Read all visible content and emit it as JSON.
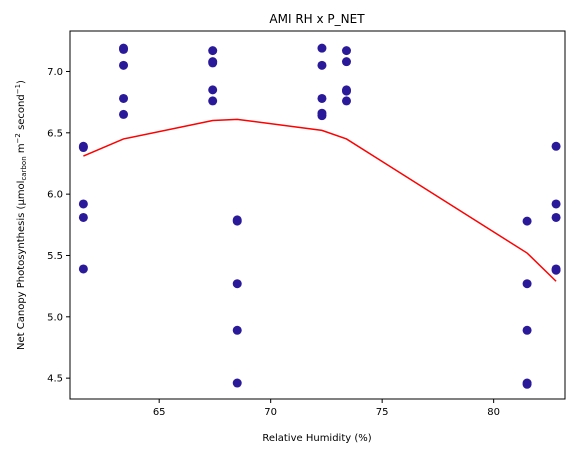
{
  "chart_data": {
    "type": "scatter",
    "title": "AMI RH x P_NET",
    "xlabel": "Relative Humidity (%)",
    "ylabel_parts": {
      "main": "Net Canopy Photosynthesis (µmol",
      "sub": "carbon",
      "mid": " m",
      "sup1": "−2",
      "mid2": " second",
      "sup2": "−1",
      "end": ")"
    },
    "xlim": [
      61.0,
      83.2
    ],
    "ylim": [
      4.33,
      7.33
    ],
    "xticks": [
      65,
      70,
      75,
      80
    ],
    "yticks": [
      4.5,
      5.0,
      5.5,
      6.0,
      6.5,
      7.0
    ],
    "xtick_labels": [
      "65",
      "70",
      "75",
      "80"
    ],
    "ytick_labels": [
      "4.5",
      "5.0",
      "5.5",
      "6.0",
      "6.5",
      "7.0"
    ],
    "grid": false,
    "series": [
      {
        "kind": "scatter",
        "color": "#2a1a9a",
        "points": [
          {
            "x": 61.6,
            "y": 6.39
          },
          {
            "x": 61.6,
            "y": 6.38
          },
          {
            "x": 61.6,
            "y": 5.92
          },
          {
            "x": 61.6,
            "y": 5.81
          },
          {
            "x": 61.6,
            "y": 5.39
          },
          {
            "x": 63.4,
            "y": 7.19
          },
          {
            "x": 63.4,
            "y": 7.18
          },
          {
            "x": 63.4,
            "y": 7.05
          },
          {
            "x": 63.4,
            "y": 6.78
          },
          {
            "x": 63.4,
            "y": 6.65
          },
          {
            "x": 67.4,
            "y": 7.17
          },
          {
            "x": 67.4,
            "y": 7.08
          },
          {
            "x": 67.4,
            "y": 7.07
          },
          {
            "x": 67.4,
            "y": 6.85
          },
          {
            "x": 67.4,
            "y": 6.76
          },
          {
            "x": 68.5,
            "y": 5.79
          },
          {
            "x": 68.5,
            "y": 5.78
          },
          {
            "x": 68.5,
            "y": 5.27
          },
          {
            "x": 68.5,
            "y": 4.89
          },
          {
            "x": 68.5,
            "y": 4.46
          },
          {
            "x": 72.3,
            "y": 7.19
          },
          {
            "x": 72.3,
            "y": 7.05
          },
          {
            "x": 72.3,
            "y": 6.78
          },
          {
            "x": 72.3,
            "y": 6.66
          },
          {
            "x": 72.3,
            "y": 6.64
          },
          {
            "x": 73.4,
            "y": 7.17
          },
          {
            "x": 73.4,
            "y": 7.08
          },
          {
            "x": 73.4,
            "y": 6.85
          },
          {
            "x": 73.4,
            "y": 6.84
          },
          {
            "x": 73.4,
            "y": 6.76
          },
          {
            "x": 81.5,
            "y": 5.78
          },
          {
            "x": 81.5,
            "y": 5.27
          },
          {
            "x": 81.5,
            "y": 4.89
          },
          {
            "x": 81.5,
            "y": 4.46
          },
          {
            "x": 81.5,
            "y": 4.45
          },
          {
            "x": 82.8,
            "y": 6.39
          },
          {
            "x": 82.8,
            "y": 5.92
          },
          {
            "x": 82.8,
            "y": 5.81
          },
          {
            "x": 82.8,
            "y": 5.39
          },
          {
            "x": 82.8,
            "y": 5.38
          }
        ]
      },
      {
        "kind": "line",
        "color": "#ff0000",
        "points": [
          {
            "x": 61.6,
            "y": 6.31
          },
          {
            "x": 63.4,
            "y": 6.45
          },
          {
            "x": 67.4,
            "y": 6.6
          },
          {
            "x": 68.5,
            "y": 6.61
          },
          {
            "x": 72.3,
            "y": 6.52
          },
          {
            "x": 73.4,
            "y": 6.45
          },
          {
            "x": 81.5,
            "y": 5.52
          },
          {
            "x": 82.8,
            "y": 5.29
          }
        ]
      }
    ]
  }
}
